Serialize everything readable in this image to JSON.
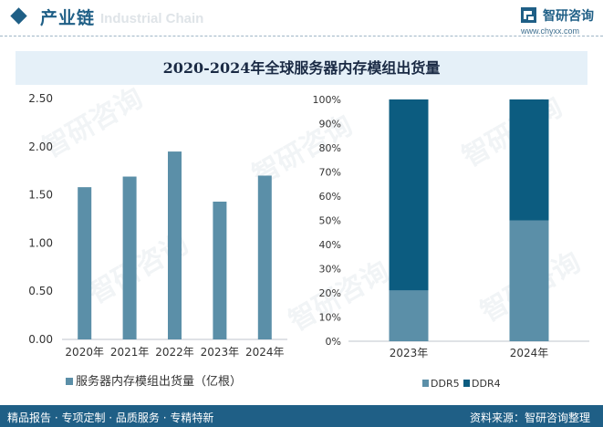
{
  "header": {
    "section_title": "产业链",
    "watermark_en": "Industrial Chain",
    "brand_name": "智研咨询",
    "brand_url": "www.chyxx.com"
  },
  "chart_title": "2020-2024年全球服务器内存模组出货量",
  "footer": {
    "left": "精品报告 · 专项定制 · 品质服务 · 专精特新",
    "right": "资料来源：智研咨询整理"
  },
  "watermark_text": "智研咨询",
  "colors": {
    "primary": "#1f5f86",
    "bar": "#5b8fa8",
    "ddr5": "#5b8fa8",
    "ddr4": "#0c5c80",
    "banner": "#e5f0f8"
  },
  "chart_data": [
    {
      "type": "bar",
      "categories": [
        "2020年",
        "2021年",
        "2022年",
        "2023年",
        "2024年"
      ],
      "series": [
        {
          "name": "服务器内存模组出货量（亿根）",
          "values": [
            1.58,
            1.69,
            1.95,
            1.43,
            1.7
          ]
        }
      ],
      "ylim": [
        0,
        2.5
      ],
      "yticks": [
        "0.00",
        "0.50",
        "1.00",
        "1.50",
        "2.00",
        "2.50"
      ],
      "legend": "bottom",
      "grid": false
    },
    {
      "type": "bar",
      "stacked": true,
      "categories": [
        "2023年",
        "2024年"
      ],
      "series": [
        {
          "name": "DDR5",
          "values": [
            21,
            50
          ]
        },
        {
          "name": "DDR4",
          "values": [
            79,
            50
          ]
        }
      ],
      "ylim": [
        0,
        100
      ],
      "yticks": [
        "0%",
        "10%",
        "20%",
        "30%",
        "40%",
        "50%",
        "60%",
        "70%",
        "80%",
        "90%",
        "100%"
      ],
      "legend": "bottom",
      "grid": false
    }
  ]
}
